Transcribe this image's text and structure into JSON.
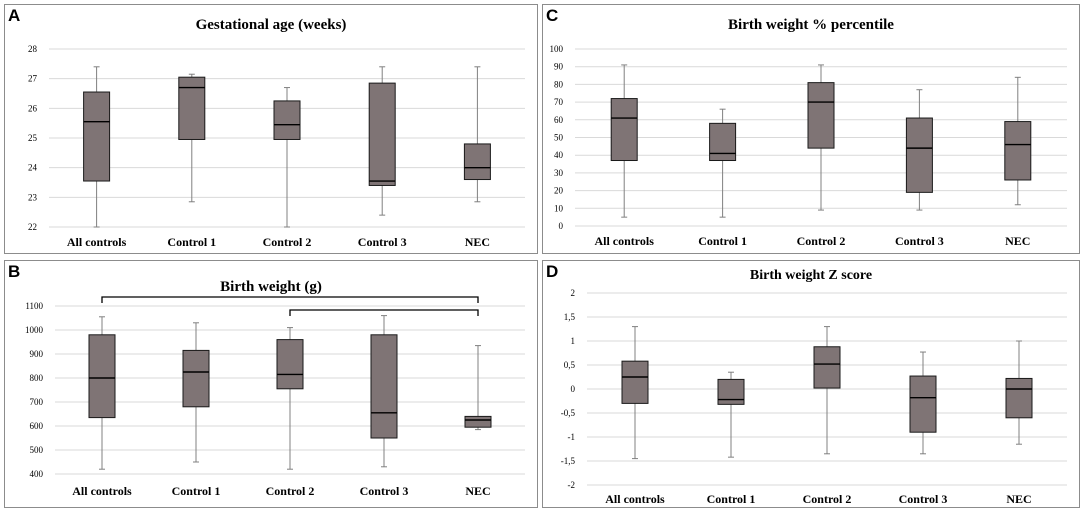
{
  "chart_data": [
    {
      "panel": "A",
      "type": "box",
      "title": "Gestational age (weeks)",
      "categories": [
        "All controls",
        "Control  1",
        "Control  2",
        "Control  3",
        "NEC"
      ],
      "ylim": [
        22,
        28
      ],
      "yticks": [
        "22",
        "23",
        "24",
        "25",
        "26",
        "27",
        "28"
      ],
      "grid": true,
      "boxes": [
        {
          "min": 22.0,
          "q1": 23.55,
          "median": 25.55,
          "q3": 26.55,
          "max": 27.4
        },
        {
          "min": 22.85,
          "q1": 24.95,
          "median": 26.7,
          "q3": 27.05,
          "max": 27.15
        },
        {
          "min": 22.0,
          "q1": 24.95,
          "median": 25.45,
          "q3": 26.25,
          "max": 26.7
        },
        {
          "min": 22.4,
          "q1": 23.4,
          "median": 23.55,
          "q3": 26.85,
          "max": 27.4
        },
        {
          "min": 22.85,
          "q1": 23.6,
          "median": 24.0,
          "q3": 24.8,
          "max": 27.4
        }
      ]
    },
    {
      "panel": "B",
      "type": "box",
      "title": "Birth weight (g)",
      "categories": [
        "All controls",
        "Control  1",
        "Control  2",
        "Control  3",
        "NEC"
      ],
      "ylim": [
        400,
        1100
      ],
      "yticks": [
        "400",
        "500",
        "600",
        "700",
        "800",
        "900",
        "1000",
        "1100"
      ],
      "grid": true,
      "boxes": [
        {
          "min": 420,
          "q1": 635,
          "median": 800,
          "q3": 980,
          "max": 1055
        },
        {
          "min": 450,
          "q1": 680,
          "median": 825,
          "q3": 915,
          "max": 1030
        },
        {
          "min": 420,
          "q1": 755,
          "median": 815,
          "q3": 960,
          "max": 1010
        },
        {
          "min": 430,
          "q1": 550,
          "median": 655,
          "q3": 980,
          "max": 1060
        },
        {
          "min": 585,
          "q1": 595,
          "median": 625,
          "q3": 640,
          "max": 935
        }
      ],
      "significance": [
        {
          "from": "All controls",
          "to": "NEC"
        },
        {
          "from": "Control  2",
          "to": "NEC"
        }
      ]
    },
    {
      "panel": "C",
      "type": "box",
      "title": "Birth weight % percentile",
      "categories": [
        "All controls",
        "Control  1",
        "Control  2",
        "Control  3",
        "NEC"
      ],
      "ylim": [
        0,
        100
      ],
      "yticks": [
        "0",
        "10",
        "20",
        "30",
        "40",
        "50",
        "60",
        "70",
        "80",
        "90",
        "100"
      ],
      "grid": true,
      "boxes": [
        {
          "min": 5,
          "q1": 37,
          "median": 61,
          "q3": 72,
          "max": 91
        },
        {
          "min": 5,
          "q1": 37,
          "median": 41,
          "q3": 58,
          "max": 66
        },
        {
          "min": 9,
          "q1": 44,
          "median": 70,
          "q3": 81,
          "max": 91
        },
        {
          "min": 9,
          "q1": 19,
          "median": 44,
          "q3": 61,
          "max": 77
        },
        {
          "min": 12,
          "q1": 26,
          "median": 46,
          "q3": 59,
          "max": 84
        }
      ]
    },
    {
      "panel": "D",
      "type": "box",
      "title": "Birth weight Z score",
      "categories": [
        "All controls",
        "Control  1",
        "Control  2",
        "Control  3",
        "NEC"
      ],
      "ylim": [
        -2,
        2
      ],
      "yticks": [
        "-2",
        "-1,5",
        "-1",
        "-0,5",
        "0",
        "0,5",
        "1",
        "1,5",
        "2"
      ],
      "grid": true,
      "boxes": [
        {
          "min": -1.45,
          "q1": -0.3,
          "median": 0.25,
          "q3": 0.58,
          "max": 1.3
        },
        {
          "min": -1.42,
          "q1": -0.32,
          "median": -0.22,
          "q3": 0.2,
          "max": 0.35
        },
        {
          "min": -1.35,
          "q1": 0.02,
          "median": 0.52,
          "q3": 0.88,
          "max": 1.3
        },
        {
          "min": -1.35,
          "q1": -0.9,
          "median": -0.18,
          "q3": 0.27,
          "max": 0.77
        },
        {
          "min": -1.15,
          "q1": -0.6,
          "median": 0.0,
          "q3": 0.22,
          "max": 1.0
        }
      ]
    }
  ]
}
